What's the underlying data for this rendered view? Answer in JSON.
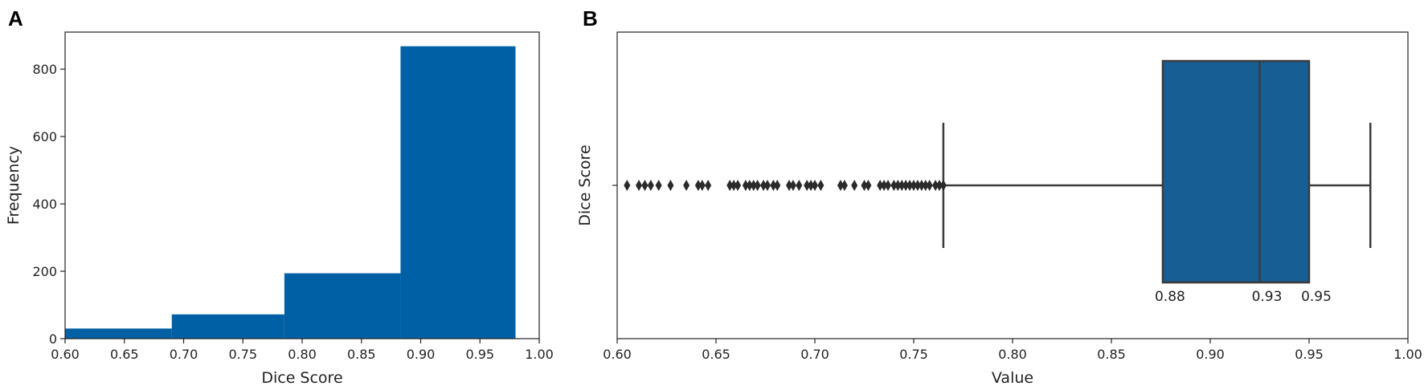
{
  "panels": {
    "a_letter": "A",
    "b_letter": "B"
  },
  "chart_data": [
    {
      "type": "bar",
      "subtype": "histogram",
      "bins": [
        {
          "x0": 0.6,
          "x1": 0.69,
          "value": 30
        },
        {
          "x0": 0.69,
          "x1": 0.785,
          "value": 72
        },
        {
          "x0": 0.785,
          "x1": 0.883,
          "value": 194
        },
        {
          "x0": 0.883,
          "x1": 0.98,
          "value": 868
        }
      ],
      "xlabel": "Dice Score",
      "ylabel": "Frequency",
      "xlim": [
        0.6,
        1.0
      ],
      "ylim": [
        0,
        910
      ],
      "xticks": [
        "0.60",
        "0.65",
        "0.70",
        "0.75",
        "0.80",
        "0.85",
        "0.90",
        "0.95",
        "1.00"
      ],
      "yticks": [
        "0",
        "200",
        "400",
        "600",
        "800"
      ],
      "color": "#0060a5",
      "grid": false
    },
    {
      "type": "box",
      "orientation": "horizontal",
      "category": "Dice Score",
      "q1": 0.876,
      "median": 0.925,
      "q3": 0.95,
      "whisker_low": 0.765,
      "whisker_high": 0.981,
      "outliers": [
        0.605,
        0.611,
        0.614,
        0.617,
        0.621,
        0.627,
        0.635,
        0.641,
        0.643,
        0.646,
        0.657,
        0.659,
        0.661,
        0.665,
        0.667,
        0.669,
        0.671,
        0.674,
        0.676,
        0.679,
        0.681,
        0.687,
        0.689,
        0.692,
        0.696,
        0.698,
        0.7,
        0.703,
        0.713,
        0.715,
        0.72,
        0.725,
        0.727,
        0.733,
        0.735,
        0.737,
        0.74,
        0.742,
        0.744,
        0.746,
        0.748,
        0.75,
        0.752,
        0.754,
        0.756,
        0.758,
        0.761,
        0.763,
        0.765
      ],
      "annotations": [
        "0.88",
        "0.93",
        "0.95"
      ],
      "xlabel": "Value",
      "ylabel": "Dice Score",
      "xlim": [
        0.6,
        1.0
      ],
      "xticks": [
        "0.60",
        "0.65",
        "0.70",
        "0.75",
        "0.80",
        "0.85",
        "0.90",
        "0.95",
        "1.00"
      ],
      "box_color": "#175e94",
      "line_color": "#3a3a3a",
      "grid": false
    }
  ]
}
